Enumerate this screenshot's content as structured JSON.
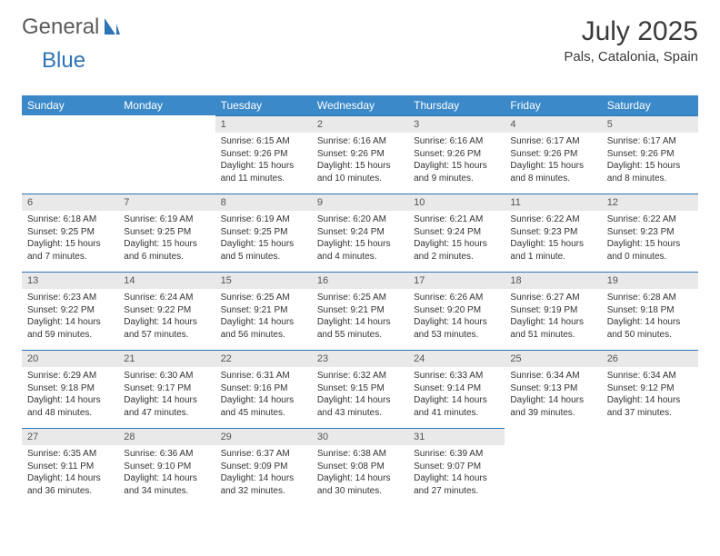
{
  "logo": {
    "word1": "General",
    "word2": "Blue"
  },
  "title": "July 2025",
  "location": "Pals, Catalonia, Spain",
  "colors": {
    "header_bg": "#3b89c9",
    "header_text": "#ffffff",
    "daynum_bg": "#e9e9e9",
    "daynum_border": "#2d74b6",
    "body_text": "#333333",
    "logo_blue": "#2d74b6"
  },
  "weekdays": [
    "Sunday",
    "Monday",
    "Tuesday",
    "Wednesday",
    "Thursday",
    "Friday",
    "Saturday"
  ],
  "weeks": [
    [
      null,
      null,
      {
        "n": "1",
        "sr": "6:15 AM",
        "ss": "9:26 PM",
        "dl": "15 hours and 11 minutes."
      },
      {
        "n": "2",
        "sr": "6:16 AM",
        "ss": "9:26 PM",
        "dl": "15 hours and 10 minutes."
      },
      {
        "n": "3",
        "sr": "6:16 AM",
        "ss": "9:26 PM",
        "dl": "15 hours and 9 minutes."
      },
      {
        "n": "4",
        "sr": "6:17 AM",
        "ss": "9:26 PM",
        "dl": "15 hours and 8 minutes."
      },
      {
        "n": "5",
        "sr": "6:17 AM",
        "ss": "9:26 PM",
        "dl": "15 hours and 8 minutes."
      }
    ],
    [
      {
        "n": "6",
        "sr": "6:18 AM",
        "ss": "9:25 PM",
        "dl": "15 hours and 7 minutes."
      },
      {
        "n": "7",
        "sr": "6:19 AM",
        "ss": "9:25 PM",
        "dl": "15 hours and 6 minutes."
      },
      {
        "n": "8",
        "sr": "6:19 AM",
        "ss": "9:25 PM",
        "dl": "15 hours and 5 minutes."
      },
      {
        "n": "9",
        "sr": "6:20 AM",
        "ss": "9:24 PM",
        "dl": "15 hours and 4 minutes."
      },
      {
        "n": "10",
        "sr": "6:21 AM",
        "ss": "9:24 PM",
        "dl": "15 hours and 2 minutes."
      },
      {
        "n": "11",
        "sr": "6:22 AM",
        "ss": "9:23 PM",
        "dl": "15 hours and 1 minute."
      },
      {
        "n": "12",
        "sr": "6:22 AM",
        "ss": "9:23 PM",
        "dl": "15 hours and 0 minutes."
      }
    ],
    [
      {
        "n": "13",
        "sr": "6:23 AM",
        "ss": "9:22 PM",
        "dl": "14 hours and 59 minutes."
      },
      {
        "n": "14",
        "sr": "6:24 AM",
        "ss": "9:22 PM",
        "dl": "14 hours and 57 minutes."
      },
      {
        "n": "15",
        "sr": "6:25 AM",
        "ss": "9:21 PM",
        "dl": "14 hours and 56 minutes."
      },
      {
        "n": "16",
        "sr": "6:25 AM",
        "ss": "9:21 PM",
        "dl": "14 hours and 55 minutes."
      },
      {
        "n": "17",
        "sr": "6:26 AM",
        "ss": "9:20 PM",
        "dl": "14 hours and 53 minutes."
      },
      {
        "n": "18",
        "sr": "6:27 AM",
        "ss": "9:19 PM",
        "dl": "14 hours and 51 minutes."
      },
      {
        "n": "19",
        "sr": "6:28 AM",
        "ss": "9:18 PM",
        "dl": "14 hours and 50 minutes."
      }
    ],
    [
      {
        "n": "20",
        "sr": "6:29 AM",
        "ss": "9:18 PM",
        "dl": "14 hours and 48 minutes."
      },
      {
        "n": "21",
        "sr": "6:30 AM",
        "ss": "9:17 PM",
        "dl": "14 hours and 47 minutes."
      },
      {
        "n": "22",
        "sr": "6:31 AM",
        "ss": "9:16 PM",
        "dl": "14 hours and 45 minutes."
      },
      {
        "n": "23",
        "sr": "6:32 AM",
        "ss": "9:15 PM",
        "dl": "14 hours and 43 minutes."
      },
      {
        "n": "24",
        "sr": "6:33 AM",
        "ss": "9:14 PM",
        "dl": "14 hours and 41 minutes."
      },
      {
        "n": "25",
        "sr": "6:34 AM",
        "ss": "9:13 PM",
        "dl": "14 hours and 39 minutes."
      },
      {
        "n": "26",
        "sr": "6:34 AM",
        "ss": "9:12 PM",
        "dl": "14 hours and 37 minutes."
      }
    ],
    [
      {
        "n": "27",
        "sr": "6:35 AM",
        "ss": "9:11 PM",
        "dl": "14 hours and 36 minutes."
      },
      {
        "n": "28",
        "sr": "6:36 AM",
        "ss": "9:10 PM",
        "dl": "14 hours and 34 minutes."
      },
      {
        "n": "29",
        "sr": "6:37 AM",
        "ss": "9:09 PM",
        "dl": "14 hours and 32 minutes."
      },
      {
        "n": "30",
        "sr": "6:38 AM",
        "ss": "9:08 PM",
        "dl": "14 hours and 30 minutes."
      },
      {
        "n": "31",
        "sr": "6:39 AM",
        "ss": "9:07 PM",
        "dl": "14 hours and 27 minutes."
      },
      null,
      null
    ]
  ],
  "labels": {
    "sunrise": "Sunrise:",
    "sunset": "Sunset:",
    "daylight": "Daylight:"
  }
}
